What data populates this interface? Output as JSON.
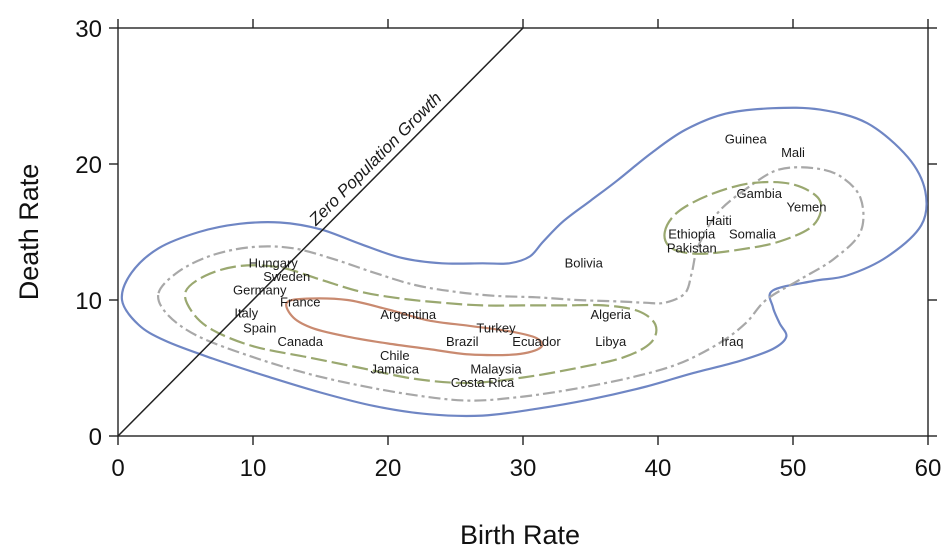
{
  "chart_data": {
    "type": "scatter",
    "title": "",
    "xlabel": "Birth Rate",
    "ylabel": "Death Rate",
    "xlim": [
      0,
      60
    ],
    "ylim": [
      0,
      30
    ],
    "x_ticks": [
      "0",
      "10",
      "20",
      "30",
      "40",
      "50",
      "60"
    ],
    "y_ticks": [
      "0",
      "10",
      "20",
      "30"
    ],
    "grid": false,
    "annotation": "Zero Population Growth",
    "reference_line": {
      "x": [
        0,
        30
      ],
      "y": [
        0,
        30
      ]
    },
    "points": [
      {
        "label": "Hungary",
        "x": 11.5,
        "y": 12.7
      },
      {
        "label": "Sweden",
        "x": 12.5,
        "y": 11.7
      },
      {
        "label": "Germany",
        "x": 10.5,
        "y": 10.7
      },
      {
        "label": "France",
        "x": 13.5,
        "y": 9.8
      },
      {
        "label": "Italy",
        "x": 9.5,
        "y": 9.0
      },
      {
        "label": "Spain",
        "x": 10.5,
        "y": 7.9
      },
      {
        "label": "Canada",
        "x": 13.5,
        "y": 6.9
      },
      {
        "label": "Argentina",
        "x": 21.5,
        "y": 8.9
      },
      {
        "label": "Chile",
        "x": 20.5,
        "y": 5.9
      },
      {
        "label": "Jamaica",
        "x": 20.5,
        "y": 4.9
      },
      {
        "label": "Brazil",
        "x": 25.5,
        "y": 6.9
      },
      {
        "label": "Turkey",
        "x": 28.0,
        "y": 7.9
      },
      {
        "label": "Ecuador",
        "x": 31.0,
        "y": 6.9
      },
      {
        "label": "Malaysia",
        "x": 28.0,
        "y": 4.9
      },
      {
        "label": "Costa Rica",
        "x": 27.0,
        "y": 3.9
      },
      {
        "label": "Bolivia",
        "x": 34.5,
        "y": 12.7
      },
      {
        "label": "Algeria",
        "x": 36.5,
        "y": 8.9
      },
      {
        "label": "Libya",
        "x": 36.5,
        "y": 6.9
      },
      {
        "label": "Iraq",
        "x": 45.5,
        "y": 6.9
      },
      {
        "label": "Guinea",
        "x": 46.5,
        "y": 21.8
      },
      {
        "label": "Mali",
        "x": 50.0,
        "y": 20.8
      },
      {
        "label": "Gambia",
        "x": 47.5,
        "y": 17.8
      },
      {
        "label": "Yemen",
        "x": 51.0,
        "y": 16.8
      },
      {
        "label": "Haiti",
        "x": 44.5,
        "y": 15.8
      },
      {
        "label": "Ethiopia",
        "x": 42.5,
        "y": 14.8
      },
      {
        "label": "Somalia",
        "x": 47.0,
        "y": 14.8
      },
      {
        "label": "Pakistan",
        "x": 42.5,
        "y": 13.8
      }
    ],
    "contours": [
      {
        "color": "#6f86c4",
        "dash": "",
        "points": [
          [
            0.3,
            10
          ],
          [
            1,
            12
          ],
          [
            3,
            13.8
          ],
          [
            6,
            15
          ],
          [
            9,
            15.6
          ],
          [
            12,
            15.7
          ],
          [
            15,
            15.2
          ],
          [
            18,
            14.1
          ],
          [
            21,
            13.1
          ],
          [
            24,
            12.7
          ],
          [
            27,
            12.7
          ],
          [
            29,
            12.7
          ],
          [
            30.5,
            13.2
          ],
          [
            31.5,
            14.3
          ],
          [
            33,
            15.8
          ],
          [
            35,
            17.3
          ],
          [
            37,
            18.8
          ],
          [
            39.5,
            20.8
          ],
          [
            42,
            22.5
          ],
          [
            45,
            23.7
          ],
          [
            48.5,
            24.1
          ],
          [
            52,
            24
          ],
          [
            55.5,
            23
          ],
          [
            58.5,
            20.5
          ],
          [
            59.8,
            18
          ],
          [
            59.5,
            15.5
          ],
          [
            57,
            13.2
          ],
          [
            54,
            11.8
          ],
          [
            51.5,
            11.4
          ],
          [
            48.5,
            10.7
          ],
          [
            48.5,
            9.5
          ],
          [
            49,
            8.3
          ],
          [
            49.5,
            7.3
          ],
          [
            48.5,
            6.4
          ],
          [
            46,
            5.5
          ],
          [
            42.5,
            4.6
          ],
          [
            39,
            3.6
          ],
          [
            35,
            2.7
          ],
          [
            31,
            2
          ],
          [
            27,
            1.5
          ],
          [
            23,
            1.6
          ],
          [
            19,
            2.2
          ],
          [
            15,
            3.2
          ],
          [
            11,
            4.4
          ],
          [
            7,
            5.7
          ],
          [
            3.5,
            7
          ],
          [
            1.5,
            8.2
          ],
          [
            0.3,
            10
          ]
        ]
      },
      {
        "color": "#a8a8a8",
        "dash": "12 4 3 4",
        "points": [
          [
            3,
            10.5
          ],
          [
            4.5,
            12.1
          ],
          [
            7,
            13.3
          ],
          [
            10,
            13.9
          ],
          [
            13,
            13.8
          ],
          [
            16,
            13
          ],
          [
            19,
            12
          ],
          [
            22,
            11.1
          ],
          [
            25,
            10.6
          ],
          [
            28,
            10.3
          ],
          [
            31,
            10.2
          ],
          [
            34,
            10
          ],
          [
            37,
            9.9
          ],
          [
            39,
            9.8
          ],
          [
            40.5,
            9.8
          ],
          [
            42,
            10.5
          ],
          [
            42.5,
            12
          ],
          [
            43,
            14
          ],
          [
            44.5,
            16.5
          ],
          [
            47,
            18.5
          ],
          [
            49,
            19.6
          ],
          [
            51.5,
            19.7
          ],
          [
            53.5,
            19.1
          ],
          [
            55,
            17.5
          ],
          [
            55,
            15
          ],
          [
            53,
            13
          ],
          [
            50.5,
            11.5
          ],
          [
            48,
            10
          ],
          [
            46.5,
            8.3
          ],
          [
            44.5,
            6.8
          ],
          [
            41.5,
            5.3
          ],
          [
            38,
            4.3
          ],
          [
            34,
            3.5
          ],
          [
            30,
            2.9
          ],
          [
            26,
            2.6
          ],
          [
            22,
            3
          ],
          [
            18,
            3.7
          ],
          [
            14,
            4.6
          ],
          [
            10,
            5.8
          ],
          [
            6,
            7.3
          ],
          [
            3.7,
            8.9
          ],
          [
            3,
            10.5
          ]
        ]
      },
      {
        "color": "#9aa870",
        "dash": "16 5",
        "points": [
          [
            5,
            10.6
          ],
          [
            6.5,
            11.8
          ],
          [
            9,
            12.5
          ],
          [
            12,
            12.4
          ],
          [
            15,
            11.5
          ],
          [
            18,
            10.6
          ],
          [
            21,
            10.1
          ],
          [
            24,
            9.8
          ],
          [
            27,
            9.6
          ],
          [
            30,
            9.6
          ],
          [
            33,
            9.6
          ],
          [
            36,
            9.6
          ],
          [
            38.5,
            9.2
          ],
          [
            39.8,
            8.2
          ],
          [
            39.5,
            6.9
          ],
          [
            37.5,
            5.8
          ],
          [
            34,
            5
          ],
          [
            30,
            4.3
          ],
          [
            26,
            3.9
          ],
          [
            22,
            4.2
          ],
          [
            18,
            5
          ],
          [
            14,
            5.8
          ],
          [
            10,
            6.6
          ],
          [
            7,
            7.8
          ],
          [
            5.5,
            9.1
          ],
          [
            5,
            10.6
          ]
        ]
      },
      {
        "color": "#9aa870",
        "dash": "16 5",
        "points": [
          [
            40.5,
            15
          ],
          [
            41.5,
            16.5
          ],
          [
            44,
            17.8
          ],
          [
            47,
            18.6
          ],
          [
            50,
            18.5
          ],
          [
            52,
            17.3
          ],
          [
            51.5,
            15.5
          ],
          [
            49,
            14.3
          ],
          [
            46,
            13.7
          ],
          [
            43,
            13.4
          ],
          [
            41,
            13.8
          ],
          [
            40.5,
            15
          ]
        ]
      },
      {
        "color": "#c98a70",
        "dash": "",
        "points": [
          [
            12.5,
            9.8
          ],
          [
            14,
            10.1
          ],
          [
            17,
            10
          ],
          [
            20,
            9.3
          ],
          [
            23,
            8.5
          ],
          [
            26,
            8.1
          ],
          [
            29,
            7.7
          ],
          [
            31,
            7.2
          ],
          [
            31.3,
            6.5
          ],
          [
            29.5,
            6
          ],
          [
            26,
            6
          ],
          [
            23,
            6.4
          ],
          [
            20,
            6.8
          ],
          [
            17,
            7.3
          ],
          [
            14.5,
            7.9
          ],
          [
            13,
            8.7
          ],
          [
            12.5,
            9.8
          ]
        ]
      }
    ]
  }
}
